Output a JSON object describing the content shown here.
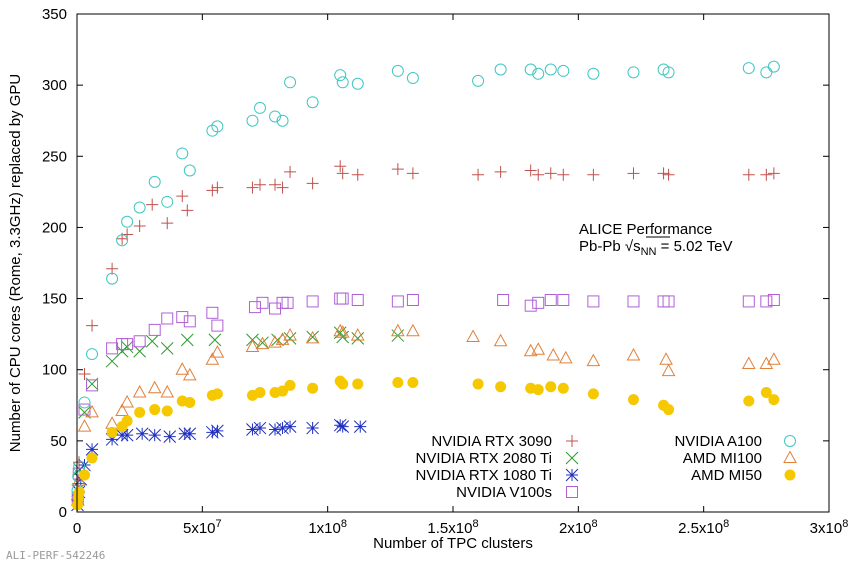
{
  "footer_text": "ALI-PERF-542246",
  "colors": {
    "NVIDIA RTX 3090": "#c0504d",
    "NVIDIA RTX 2080 Ti": "#2e9a2e",
    "NVIDIA RTX 1080 Ti": "#1f2fbf",
    "NVIDIA V100s": "#b05fd6",
    "NVIDIA A100": "#3fc7c0",
    "AMD MI100": "#e0803a",
    "AMD MI50": "#f5c800"
  },
  "chart_data": {
    "type": "scatter",
    "xlabel": "Number of TPC clusters",
    "ylabel": "Number of CPU cores (Rome, 3.3GHz) replaced by GPU",
    "xlim": [
      0,
      300000000
    ],
    "ylim": [
      0,
      350
    ],
    "x_ticks": [
      0,
      50000000,
      100000000,
      150000000,
      200000000,
      250000000,
      300000000
    ],
    "x_tick_labels": [
      {
        "mant": "0",
        "exp": ""
      },
      {
        "mant": "5x10",
        "exp": "7"
      },
      {
        "mant": "1x10",
        "exp": "8"
      },
      {
        "mant": "1.5x10",
        "exp": "8"
      },
      {
        "mant": "2x10",
        "exp": "8"
      },
      {
        "mant": "2.5x10",
        "exp": "8"
      },
      {
        "mant": "3x10",
        "exp": "8"
      }
    ],
    "y_ticks": [
      0,
      50,
      100,
      150,
      200,
      250,
      300,
      350
    ],
    "annotation_line1": "ALICE Performance",
    "annotation_line2_prefix": "Pb-Pb √s",
    "annotation_line2_sub": "NN",
    "annotation_line2_suffix": " = 5.02 TeV",
    "legend_left": [
      "NVIDIA RTX 3090",
      "NVIDIA RTX 2080 Ti",
      "NVIDIA RTX 1080 Ti",
      "NVIDIA V100s"
    ],
    "legend_right": [
      "NVIDIA A100",
      "AMD MI100",
      "AMD MI50"
    ],
    "series": [
      {
        "name": "NVIDIA RTX 3090",
        "marker": "plus",
        "points": [
          [
            200000,
            8
          ],
          [
            500000,
            20
          ],
          [
            800000,
            35
          ],
          [
            3000000,
            97
          ],
          [
            6000000,
            131
          ],
          [
            14000000,
            171
          ],
          [
            18000000,
            192
          ],
          [
            20000000,
            195
          ],
          [
            25000000,
            201
          ],
          [
            30000000,
            216
          ],
          [
            36000000,
            203
          ],
          [
            42000000,
            222
          ],
          [
            44000000,
            212
          ],
          [
            54000000,
            226
          ],
          [
            56000000,
            228
          ],
          [
            70000000,
            228
          ],
          [
            73000000,
            230
          ],
          [
            79000000,
            230
          ],
          [
            82000000,
            228
          ],
          [
            85000000,
            239
          ],
          [
            94000000,
            231
          ],
          [
            105000000,
            243
          ],
          [
            106000000,
            238
          ],
          [
            112000000,
            237
          ],
          [
            128000000,
            241
          ],
          [
            134000000,
            238
          ],
          [
            160000000,
            237
          ],
          [
            169000000,
            239
          ],
          [
            181000000,
            240
          ],
          [
            184000000,
            237
          ],
          [
            189000000,
            238
          ],
          [
            194000000,
            237
          ],
          [
            206000000,
            237
          ],
          [
            222000000,
            238
          ],
          [
            234000000,
            238
          ],
          [
            236000000,
            237
          ],
          [
            268000000,
            237
          ],
          [
            275000000,
            237
          ],
          [
            278000000,
            238
          ]
        ]
      },
      {
        "name": "NVIDIA RTX 2080 Ti",
        "marker": "x",
        "points": [
          [
            300000,
            15
          ],
          [
            1000000,
            30
          ],
          [
            3000000,
            70
          ],
          [
            6000000,
            90
          ],
          [
            14000000,
            106
          ],
          [
            18000000,
            113
          ],
          [
            20000000,
            116
          ],
          [
            25000000,
            113
          ],
          [
            30000000,
            120
          ],
          [
            36000000,
            115
          ],
          [
            44000000,
            121
          ],
          [
            55000000,
            121
          ],
          [
            70000000,
            121
          ],
          [
            74000000,
            119
          ],
          [
            80000000,
            121
          ],
          [
            85000000,
            122
          ],
          [
            94000000,
            123
          ],
          [
            105000000,
            126
          ],
          [
            106000000,
            123
          ],
          [
            112000000,
            122
          ],
          [
            128000000,
            124
          ]
        ]
      },
      {
        "name": "NVIDIA RTX 1080 Ti",
        "marker": "star",
        "points": [
          [
            200000,
            5
          ],
          [
            400000,
            9
          ],
          [
            800000,
            14
          ],
          [
            1500000,
            23
          ],
          [
            3000000,
            33
          ],
          [
            6000000,
            44
          ],
          [
            14000000,
            51
          ],
          [
            18000000,
            54
          ],
          [
            20000000,
            54
          ],
          [
            26000000,
            55
          ],
          [
            31000000,
            54
          ],
          [
            37000000,
            53
          ],
          [
            43000000,
            55
          ],
          [
            45000000,
            55
          ],
          [
            54000000,
            56
          ],
          [
            56000000,
            57
          ],
          [
            70000000,
            58
          ],
          [
            73000000,
            59
          ],
          [
            79000000,
            58
          ],
          [
            82000000,
            59
          ],
          [
            85000000,
            60
          ],
          [
            94000000,
            59
          ],
          [
            105000000,
            61
          ],
          [
            106000000,
            60
          ],
          [
            113000000,
            60
          ]
        ]
      },
      {
        "name": "NVIDIA V100s",
        "marker": "square",
        "points": [
          [
            300000,
            10
          ],
          [
            700000,
            27
          ],
          [
            3000000,
            72
          ],
          [
            6000000,
            89
          ],
          [
            14000000,
            115
          ],
          [
            18000000,
            118
          ],
          [
            20000000,
            118
          ],
          [
            25000000,
            120
          ],
          [
            31000000,
            128
          ],
          [
            36000000,
            136
          ],
          [
            42000000,
            137
          ],
          [
            45000000,
            134
          ],
          [
            54000000,
            140
          ],
          [
            56000000,
            131
          ],
          [
            71000000,
            144
          ],
          [
            74000000,
            147
          ],
          [
            79000000,
            143
          ],
          [
            82000000,
            147
          ],
          [
            84000000,
            147
          ],
          [
            94000000,
            148
          ],
          [
            105000000,
            150
          ],
          [
            106000000,
            150
          ],
          [
            112000000,
            149
          ],
          [
            128000000,
            148
          ],
          [
            134000000,
            149
          ],
          [
            170000000,
            149
          ],
          [
            181000000,
            145
          ],
          [
            184000000,
            147
          ],
          [
            189000000,
            149
          ],
          [
            194000000,
            149
          ],
          [
            206000000,
            148
          ],
          [
            222000000,
            148
          ],
          [
            234000000,
            148
          ],
          [
            236000000,
            148
          ],
          [
            268000000,
            148
          ],
          [
            275000000,
            148
          ],
          [
            278000000,
            149
          ]
        ]
      },
      {
        "name": "NVIDIA A100",
        "marker": "circle",
        "points": [
          [
            200000,
            15
          ],
          [
            500000,
            25
          ],
          [
            900000,
            32
          ],
          [
            3000000,
            77
          ],
          [
            6000000,
            111
          ],
          [
            14000000,
            164
          ],
          [
            18000000,
            191
          ],
          [
            20000000,
            204
          ],
          [
            25000000,
            214
          ],
          [
            31000000,
            232
          ],
          [
            36000000,
            218
          ],
          [
            42000000,
            252
          ],
          [
            45000000,
            240
          ],
          [
            54000000,
            268
          ],
          [
            56000000,
            271
          ],
          [
            70000000,
            275
          ],
          [
            73000000,
            284
          ],
          [
            79000000,
            278
          ],
          [
            82000000,
            275
          ],
          [
            85000000,
            302
          ],
          [
            94000000,
            288
          ],
          [
            105000000,
            307
          ],
          [
            106000000,
            302
          ],
          [
            112000000,
            301
          ],
          [
            128000000,
            310
          ],
          [
            134000000,
            305
          ],
          [
            160000000,
            303
          ],
          [
            169000000,
            311
          ],
          [
            181000000,
            311
          ],
          [
            184000000,
            308
          ],
          [
            189000000,
            311
          ],
          [
            194000000,
            310
          ],
          [
            206000000,
            308
          ],
          [
            222000000,
            309
          ],
          [
            234000000,
            311
          ],
          [
            236000000,
            309
          ],
          [
            268000000,
            312
          ],
          [
            275000000,
            309
          ],
          [
            278000000,
            313
          ]
        ]
      },
      {
        "name": "AMD MI100",
        "marker": "triangle",
        "points": [
          [
            300000,
            8
          ],
          [
            800000,
            22
          ],
          [
            3000000,
            60
          ],
          [
            6000000,
            70
          ],
          [
            14000000,
            62
          ],
          [
            18000000,
            71
          ],
          [
            20000000,
            77
          ],
          [
            25000000,
            84
          ],
          [
            31000000,
            87
          ],
          [
            36000000,
            84
          ],
          [
            42000000,
            100
          ],
          [
            45000000,
            96
          ],
          [
            54000000,
            107
          ],
          [
            56000000,
            112
          ],
          [
            70000000,
            116
          ],
          [
            74000000,
            118
          ],
          [
            79000000,
            119
          ],
          [
            82000000,
            121
          ],
          [
            85000000,
            124
          ],
          [
            94000000,
            122
          ],
          [
            105000000,
            127
          ],
          [
            106000000,
            126
          ],
          [
            112000000,
            124
          ],
          [
            128000000,
            127
          ],
          [
            134000000,
            127
          ],
          [
            158000000,
            123
          ],
          [
            169000000,
            120
          ],
          [
            181000000,
            113
          ],
          [
            184000000,
            114
          ],
          [
            190000000,
            110
          ],
          [
            195000000,
            108
          ],
          [
            206000000,
            106
          ],
          [
            222000000,
            110
          ],
          [
            235000000,
            107
          ],
          [
            236000000,
            99
          ],
          [
            268000000,
            104
          ],
          [
            275000000,
            104
          ],
          [
            278000000,
            107
          ]
        ]
      },
      {
        "name": "AMD MI50",
        "marker": "dot",
        "points": [
          [
            200000,
            5
          ],
          [
            500000,
            10
          ],
          [
            900000,
            14
          ],
          [
            3000000,
            26
          ],
          [
            6000000,
            38
          ],
          [
            14000000,
            56
          ],
          [
            18000000,
            60
          ],
          [
            20000000,
            64
          ],
          [
            25000000,
            70
          ],
          [
            31000000,
            72
          ],
          [
            36000000,
            71
          ],
          [
            42000000,
            78
          ],
          [
            45000000,
            77
          ],
          [
            54000000,
            82
          ],
          [
            56000000,
            83
          ],
          [
            70000000,
            82
          ],
          [
            73000000,
            84
          ],
          [
            79000000,
            84
          ],
          [
            82000000,
            85
          ],
          [
            85000000,
            89
          ],
          [
            94000000,
            87
          ],
          [
            105000000,
            92
          ],
          [
            106000000,
            90
          ],
          [
            112000000,
            90
          ],
          [
            128000000,
            91
          ],
          [
            134000000,
            91
          ],
          [
            160000000,
            90
          ],
          [
            169000000,
            88
          ],
          [
            181000000,
            87
          ],
          [
            184000000,
            86
          ],
          [
            189000000,
            88
          ],
          [
            194000000,
            87
          ],
          [
            206000000,
            83
          ],
          [
            222000000,
            79
          ],
          [
            234000000,
            75
          ],
          [
            236000000,
            72
          ],
          [
            268000000,
            78
          ],
          [
            275000000,
            84
          ],
          [
            278000000,
            79
          ]
        ]
      }
    ]
  }
}
